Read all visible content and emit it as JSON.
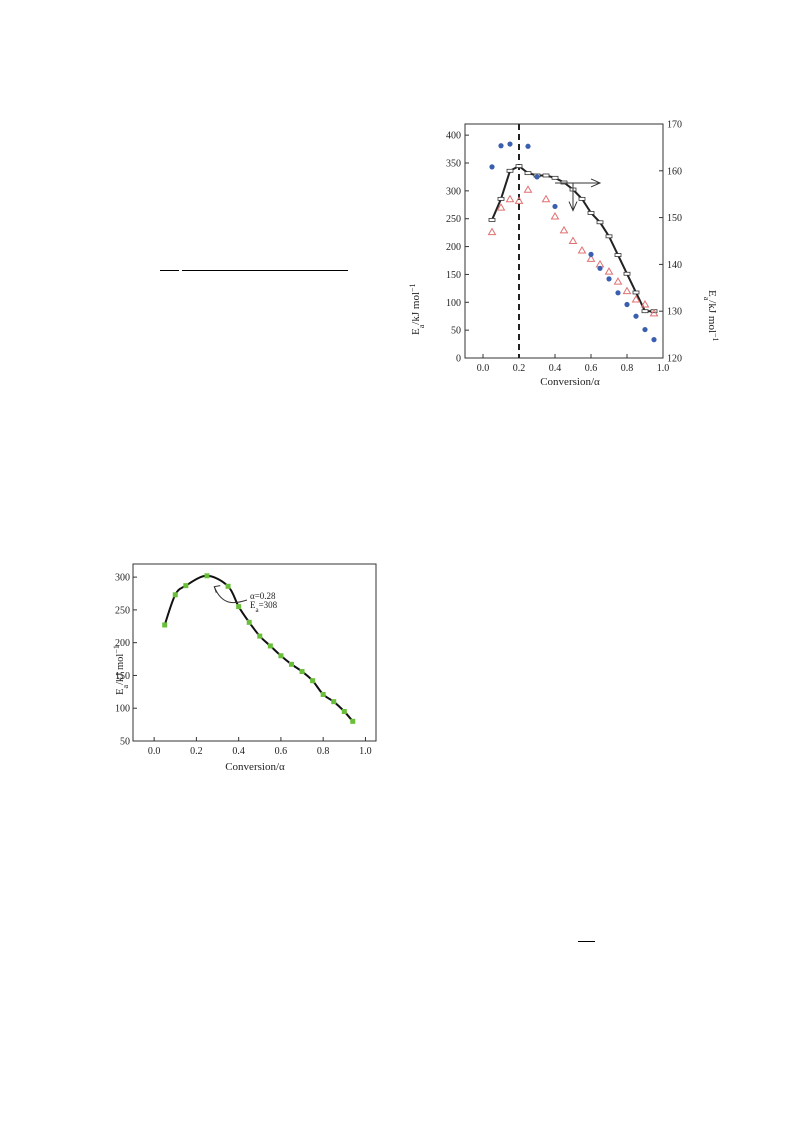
{
  "chart_data": [
    {
      "type": "scatter",
      "xlabel": "Conversion/α",
      "ylabel_left": "E",
      "ylabel_left_sub": "a",
      "ylabel_left_unit": "/kJ mol",
      "ylabel_left_sup": "−1",
      "ylabel_right": "E",
      "ylabel_right_sub": "a",
      "ylabel_right_unit": "/kJ mol",
      "ylabel_right_sup": "−1",
      "xlim": [
        -0.1,
        1.0
      ],
      "ylim_left": [
        0,
        420
      ],
      "ylim_right": [
        120,
        170
      ],
      "x_ticks": [
        "0.0",
        "0.2",
        "0.4",
        "0.6",
        "0.8",
        "1.0"
      ],
      "x_tick_values": [
        0.0,
        0.2,
        0.4,
        0.6,
        0.8,
        1.0
      ],
      "y_ticks_left": [
        "0",
        "50",
        "100",
        "150",
        "200",
        "250",
        "300",
        "350",
        "400"
      ],
      "y_tick_values_left": [
        0,
        50,
        100,
        150,
        200,
        250,
        300,
        350,
        400
      ],
      "y_ticks_right": [
        "120",
        "130",
        "140",
        "150",
        "160",
        "170"
      ],
      "y_tick_values_right": [
        120,
        130,
        140,
        150,
        160,
        170
      ],
      "dashed_vline_x": 0.2,
      "colors": {
        "circles": "#3a5fb0",
        "triangles": "#e07070",
        "line": "#222222"
      },
      "series": [
        {
          "marker": "circle",
          "axis": "left",
          "x": [
            0.05,
            0.1,
            0.15,
            0.25,
            0.3,
            0.4,
            0.6,
            0.65,
            0.7,
            0.75,
            0.8,
            0.85,
            0.9,
            0.95
          ],
          "y": [
            343,
            381,
            384,
            380,
            325,
            272,
            186,
            161,
            142,
            117,
            96,
            75,
            51,
            33
          ]
        },
        {
          "marker": "triangle",
          "axis": "left",
          "x": [
            0.05,
            0.1,
            0.15,
            0.2,
            0.25,
            0.35,
            0.4,
            0.45,
            0.5,
            0.55,
            0.6,
            0.65,
            0.7,
            0.75,
            0.8,
            0.85,
            0.9,
            0.95
          ],
          "y": [
            226,
            270,
            285,
            282,
            302,
            285,
            254,
            229,
            210,
            193,
            178,
            168,
            155,
            137,
            120,
            105,
            96,
            80
          ]
        },
        {
          "marker": "square-line",
          "axis": "right",
          "x": [
            0.05,
            0.1,
            0.15,
            0.2,
            0.25,
            0.3,
            0.35,
            0.4,
            0.45,
            0.5,
            0.55,
            0.6,
            0.65,
            0.7,
            0.75,
            0.8,
            0.85,
            0.9,
            0.95
          ],
          "y": [
            149.5,
            154,
            160,
            161,
            159.5,
            159,
            159,
            158.5,
            157.5,
            156,
            154,
            151,
            149,
            146,
            142,
            138,
            134,
            130,
            130
          ]
        }
      ],
      "arrows": [
        {
          "from": [
            0.4,
            157.4
          ],
          "to": [
            0.65,
            157.4
          ]
        },
        {
          "from": [
            0.5,
            157.4
          ],
          "to": [
            0.5,
            151.5
          ]
        }
      ]
    },
    {
      "type": "line",
      "xlabel": "Conversion/α",
      "ylabel": "E",
      "ylabel_sub": "a",
      "ylabel_unit": "/kJ mol",
      "ylabel_sup": "−1",
      "xlim": [
        -0.1,
        1.05
      ],
      "ylim": [
        50,
        320
      ],
      "x_ticks": [
        "0.0",
        "0.2",
        "0.4",
        "0.6",
        "0.8",
        "1.0"
      ],
      "x_tick_values": [
        0.0,
        0.2,
        0.4,
        0.6,
        0.8,
        1.0
      ],
      "y_ticks": [
        "50",
        "100",
        "150",
        "200",
        "250",
        "300"
      ],
      "y_tick_values": [
        50,
        100,
        150,
        200,
        250,
        300
      ],
      "colors": {
        "points": "#6abf3a",
        "line": "#111111"
      },
      "x": [
        0.05,
        0.1,
        0.15,
        0.25,
        0.35,
        0.4,
        0.45,
        0.5,
        0.55,
        0.6,
        0.65,
        0.7,
        0.75,
        0.8,
        0.85,
        0.9,
        0.94
      ],
      "y": [
        227,
        273,
        287,
        302,
        286,
        255,
        231,
        210,
        195,
        180,
        167,
        156,
        142,
        121,
        110,
        95,
        80
      ],
      "annotation": {
        "line1": "α=0.28",
        "line2_main": "E",
        "line2_sub": "a",
        "line2_rest": "=308",
        "point": [
          0.28,
          290
        ]
      }
    }
  ]
}
